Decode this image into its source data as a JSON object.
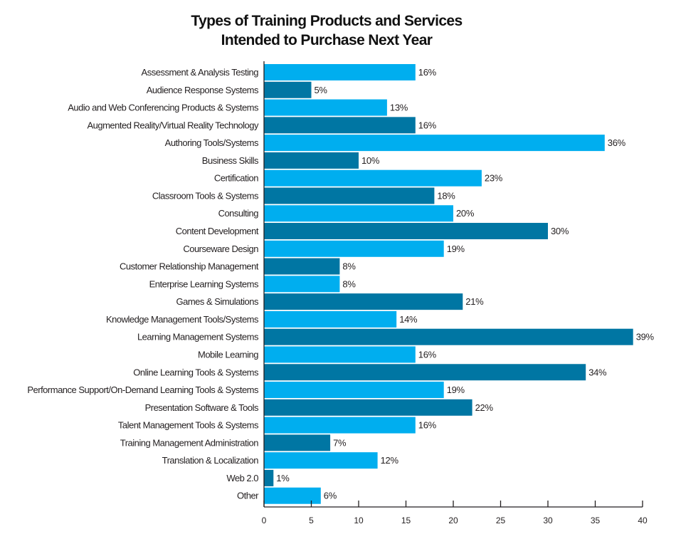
{
  "chart_data": {
    "type": "bar",
    "orientation": "horizontal",
    "title_lines": [
      "Types of Training Products and Services",
      "Intended to Purchase Next Year"
    ],
    "xlabel": "",
    "ylabel": "",
    "xlim": [
      0,
      40
    ],
    "xticks": [
      0,
      5,
      10,
      15,
      20,
      25,
      30,
      35,
      40
    ],
    "grid": false,
    "legend": null,
    "value_suffix": "%",
    "colors": {
      "light": "#00aeef",
      "dark": "#0076a3",
      "axis": "#231f20"
    },
    "categories": [
      "Assessment & Analysis Testing",
      "Audience Response Systems",
      "Audio and Web Conferencing Products & Systems",
      "Augmented Reality/Virtual Reality Technology",
      "Authoring Tools/Systems",
      "Business Skills",
      "Certification",
      "Classroom Tools & Systems",
      "Consulting",
      "Content Development",
      "Courseware Design",
      "Customer Relationship Management",
      "Enterprise Learning Systems",
      "Games & Simulations",
      "Knowledge Management Tools/Systems",
      "Learning Management Systems",
      "Mobile Learning",
      "Online Learning Tools & Systems",
      "Performance Support/On-Demand Learning Tools & Systems",
      "Presentation Software & Tools",
      "Talent Management Tools & Systems",
      "Training Management Administration",
      "Translation & Localization",
      "Web 2.0",
      "Other"
    ],
    "values": [
      16,
      5,
      13,
      16,
      36,
      10,
      23,
      18,
      20,
      30,
      19,
      8,
      8,
      21,
      14,
      39,
      16,
      34,
      19,
      22,
      16,
      7,
      12,
      1,
      6
    ],
    "bar_color_pattern": "alternating light/dark starting with light"
  }
}
